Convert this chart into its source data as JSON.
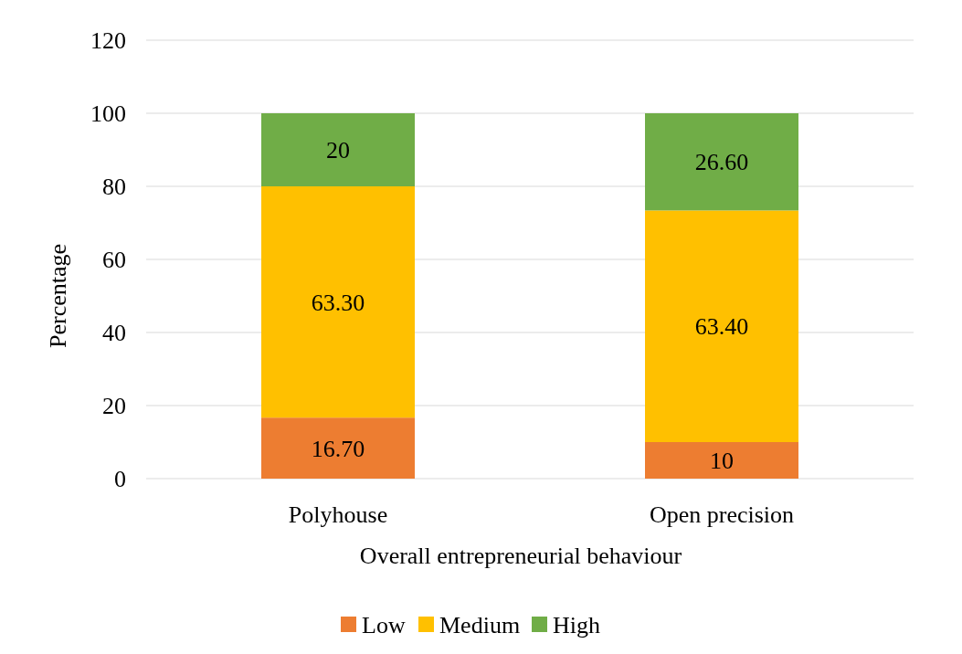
{
  "chart_data": {
    "type": "bar",
    "stacked": true,
    "categories": [
      "Polyhouse",
      "Open precision"
    ],
    "xlabel": "Overall entrepreneurial behaviour",
    "ylabel": "Percentage",
    "ylim": [
      0,
      120
    ],
    "yticks": [
      0,
      20,
      40,
      60,
      80,
      100,
      120
    ],
    "grid": "y",
    "legend": "bottom",
    "series": [
      {
        "name": "Low",
        "color": "#ed7d31",
        "values": [
          16.7,
          10
        ],
        "value_labels": [
          "16.70",
          "10"
        ]
      },
      {
        "name": "Medium",
        "color": "#ffc000",
        "values": [
          63.3,
          63.4
        ],
        "value_labels": [
          "63.30",
          "63.40"
        ]
      },
      {
        "name": "High",
        "color": "#70ad47",
        "values": [
          20,
          26.6
        ],
        "value_labels": [
          "20",
          "26.60"
        ]
      }
    ]
  }
}
